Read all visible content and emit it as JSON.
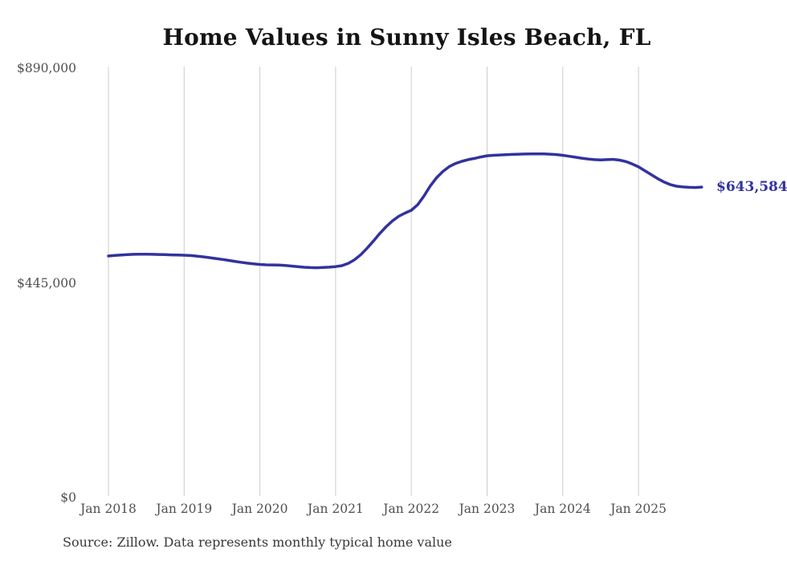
{
  "chart": {
    "title": "Home Values in Sunny Isles Beach, FL",
    "source_note": "Source: Zillow. Data represents monthly typical home value",
    "end_value_label": "$643,584",
    "colors": {
      "line": "#32329e",
      "grid": "#cccccc",
      "tick_text": "#4f4f4f",
      "title_text": "#141414"
    }
  },
  "chart_data": {
    "type": "line",
    "title": "Home Values in Sunny Isles Beach, FL",
    "xlabel": "",
    "ylabel": "",
    "x_tick_labels": [
      "Jan 2018",
      "Jan 2019",
      "Jan 2020",
      "Jan 2021",
      "Jan 2022",
      "Jan 2023",
      "Jan 2024",
      "Jan 2025"
    ],
    "y_tick_labels": [
      "$0",
      "$445,000",
      "$890,000"
    ],
    "y_tick_values": [
      0,
      445000,
      890000
    ],
    "ylim": [
      0,
      890000
    ],
    "grid": "vertical-only",
    "legend": "none",
    "frequency": "monthly",
    "x_start": "Jan 2018",
    "x_end": "Nov 2025",
    "series": [
      {
        "name": "Typical home value",
        "unit": "USD",
        "final_value": 643584,
        "final_value_label": "$643,584",
        "values": [
          500800,
          501900,
          502900,
          503700,
          504300,
          504500,
          504400,
          504200,
          503900,
          503500,
          503100,
          502800,
          502400,
          501700,
          500600,
          499100,
          497400,
          495600,
          493700,
          491700,
          489700,
          487700,
          485900,
          484400,
          483200,
          482500,
          482200,
          482000,
          481300,
          480000,
          478600,
          477400,
          476700,
          476500,
          476900,
          477600,
          478700,
          480800,
          485500,
          493000,
          503500,
          517000,
          532000,
          547500,
          561500,
          573500,
          583000,
          589800,
          595500,
          607000,
          625000,
          646000,
          663000,
          676000,
          686000,
          692500,
          697000,
          700500,
          703000,
          706000,
          708500,
          709500,
          710200,
          710800,
          711300,
          711800,
          712200,
          712500,
          712500,
          712300,
          711800,
          711000,
          709500,
          707500,
          705500,
          703500,
          701800,
          700500,
          700000,
          700500,
          701000,
          699500,
          696500,
          691500,
          685500,
          677500,
          669500,
          661500,
          654500,
          649000,
          645500,
          644000,
          643200,
          642800,
          643584
        ]
      }
    ]
  }
}
